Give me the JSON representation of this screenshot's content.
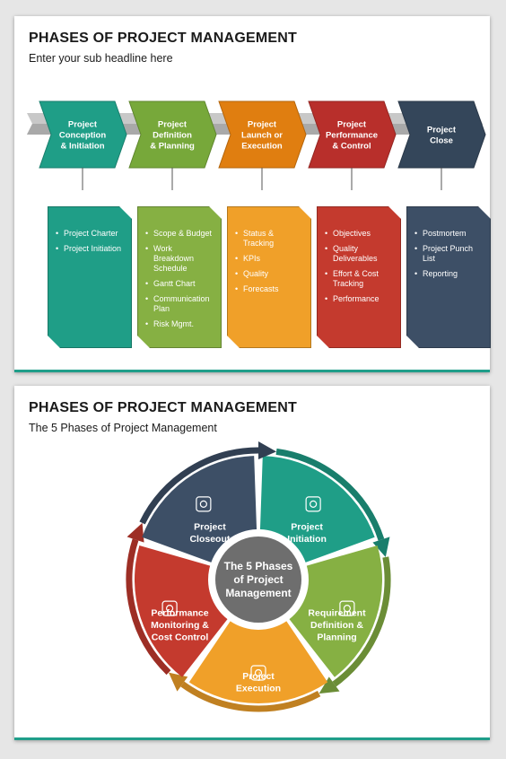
{
  "slide1": {
    "title": "PHASES OF PROJECT MANAGEMENT",
    "subtitle": "Enter your sub headline here",
    "phases": [
      {
        "label": [
          "Project",
          "Conception",
          "& Initiation"
        ],
        "color": "#1f9e87",
        "card_color": "#1f9e87",
        "items": [
          "Project Charter",
          "Project Initiation"
        ]
      },
      {
        "label": [
          "Project",
          "Definition",
          "& Planning"
        ],
        "color": "#77a83a",
        "card_color": "#86b043",
        "items": [
          "Scope & Budget",
          "Work Breakdown Schedule",
          "Gantt Chart",
          "Communication Plan",
          "Risk Mgmt."
        ]
      },
      {
        "label": [
          "Project",
          "Launch or",
          "Execution"
        ],
        "color": "#e07e10",
        "card_color": "#f0a029",
        "items": [
          "Status & Tracking",
          "KPIs",
          "Quality",
          "Forecasts"
        ]
      },
      {
        "label": [
          "Project",
          "Performance",
          "& Control"
        ],
        "color": "#b82f2b",
        "card_color": "#c43a2e",
        "items": [
          "Objectives",
          "Quality Deliverables",
          "Effort & Cost Tracking",
          "Performance"
        ]
      },
      {
        "label": [
          "Project",
          "Close"
        ],
        "color": "#34465a",
        "card_color": "#3d4f66",
        "items": [
          "Postmortem",
          "Project Punch List",
          "Reporting"
        ]
      }
    ]
  },
  "slide2": {
    "title": "PHASES OF PROJECT MANAGEMENT",
    "subtitle": "The 5 Phases of Project Management",
    "center_label": [
      "The 5 Phases",
      "of Project",
      "Management"
    ],
    "center_color": "#6e6e6e",
    "segments": [
      {
        "label": [
          "Project",
          "Initiation"
        ],
        "color": "#1f9e87",
        "icon": "rocket-icon"
      },
      {
        "label": [
          "Requirement",
          "Definition &",
          "Planning"
        ],
        "color": "#86b043",
        "icon": "blueprint-icon"
      },
      {
        "label": [
          "Project",
          "Execution"
        ],
        "color": "#f0a029",
        "icon": "gears-monitor-icon"
      },
      {
        "label": [
          "Performance",
          "Monitoring &",
          "Cost Control"
        ],
        "color": "#c43a2e",
        "icon": "dashboard-icon"
      },
      {
        "label": [
          "Project",
          "Closeout"
        ],
        "color": "#3d4f66",
        "icon": "handshake-icon"
      }
    ]
  }
}
